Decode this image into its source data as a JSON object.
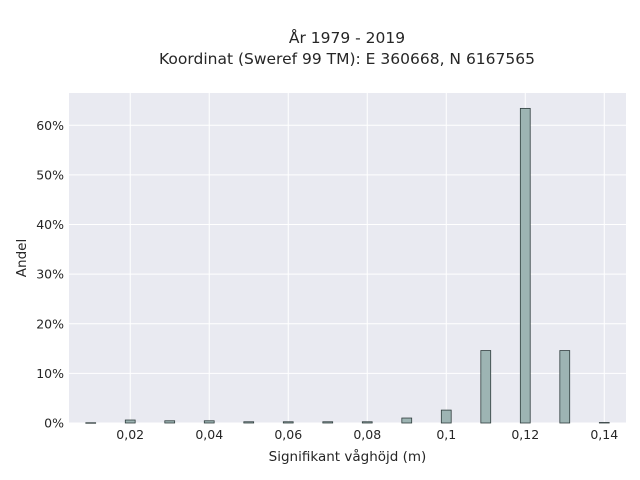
{
  "chart_data": {
    "type": "bar",
    "title_lines": [
      "År 1979 - 2019",
      "Koordinat (Sweref 99 TM): E 360668, N 6167565"
    ],
    "xlabel": "Signifikant våghöjd (m)",
    "ylabel": "Andel",
    "x_ticks": [
      0.02,
      0.04,
      0.06,
      0.08,
      0.1,
      0.12,
      0.14
    ],
    "x_tick_labels": [
      "0,02",
      "0,04",
      "0,06",
      "0,08",
      "0,1",
      "0,12",
      "0,14"
    ],
    "y_ticks": [
      0,
      10,
      20,
      30,
      40,
      50,
      60
    ],
    "y_tick_labels": [
      "0%",
      "10%",
      "20%",
      "30%",
      "40%",
      "50%",
      "60%"
    ],
    "xlim": [
      0.0045,
      0.1455
    ],
    "ylim": [
      0,
      66.5
    ],
    "bar_width": 0.0025,
    "x": [
      0.01,
      0.02,
      0.03,
      0.04,
      0.05,
      0.06,
      0.07,
      0.08,
      0.09,
      0.1,
      0.11,
      0.12,
      0.13,
      0.14
    ],
    "values": [
      0.05,
      0.6,
      0.45,
      0.45,
      0.25,
      0.25,
      0.25,
      0.25,
      1.0,
      2.6,
      14.6,
      63.4,
      14.6,
      0.1
    ],
    "grid": true,
    "colors": {
      "bar_fill": "#9db4b3",
      "bar_edge": "#2f3d3d",
      "plot_background": "#e9eaf1",
      "grid": "#ffffff"
    }
  }
}
